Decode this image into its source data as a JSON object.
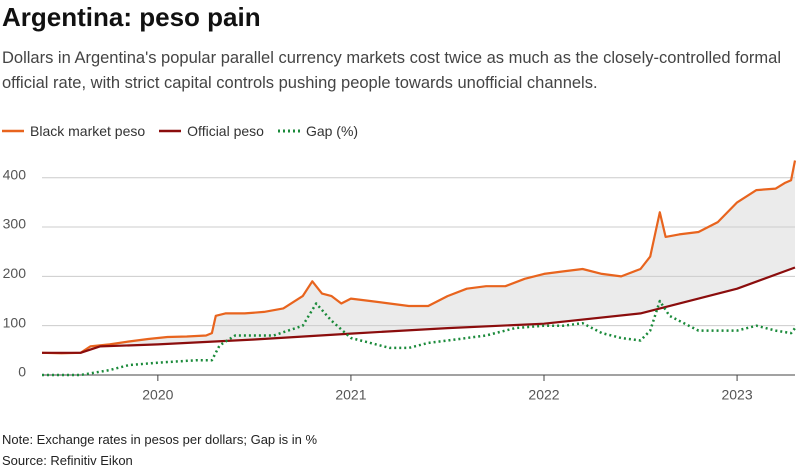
{
  "chart_data": {
    "type": "line",
    "title": "Argentina: peso pain",
    "subtitle": "Dollars in Argentina's popular parallel currency markets cost twice as much as the closely-controlled formal official rate, with strict capital controls pushing people towards unofficial channels.",
    "note": "Note: Exchange rates in pesos per dollars; Gap is in %",
    "source": "Source: Refinitiv Eikon",
    "xlim": [
      2019.4,
      2023.3
    ],
    "xticks": [
      2020,
      2021,
      2022,
      2023
    ],
    "ylim": [
      0,
      440
    ],
    "yticks": [
      0,
      100,
      200,
      300,
      400
    ],
    "grid": true,
    "shade_between": [
      0,
      1
    ],
    "series": [
      {
        "name": "Black market peso",
        "color": "#e8641e",
        "style": "solid",
        "x": [
          2019.4,
          2019.5,
          2019.6,
          2019.65,
          2019.75,
          2019.85,
          2019.95,
          2020.05,
          2020.15,
          2020.25,
          2020.28,
          2020.3,
          2020.35,
          2020.45,
          2020.55,
          2020.65,
          2020.75,
          2020.8,
          2020.85,
          2020.9,
          2020.95,
          2021.0,
          2021.1,
          2021.2,
          2021.3,
          2021.4,
          2021.5,
          2021.6,
          2021.7,
          2021.8,
          2021.9,
          2022.0,
          2022.1,
          2022.2,
          2022.3,
          2022.4,
          2022.5,
          2022.55,
          2022.6,
          2022.63,
          2022.7,
          2022.8,
          2022.9,
          2023.0,
          2023.1,
          2023.2,
          2023.25,
          2023.28,
          2023.3
        ],
        "values": [
          45,
          44,
          45,
          58,
          62,
          68,
          73,
          77,
          78,
          80,
          85,
          120,
          125,
          125,
          128,
          135,
          160,
          190,
          165,
          160,
          145,
          155,
          150,
          145,
          140,
          140,
          160,
          175,
          180,
          180,
          195,
          205,
          210,
          215,
          205,
          200,
          215,
          240,
          330,
          280,
          285,
          290,
          310,
          350,
          375,
          378,
          390,
          395,
          435
        ]
      },
      {
        "name": "Official peso",
        "color": "#8b0d0d",
        "style": "solid",
        "x": [
          2019.4,
          2019.6,
          2019.7,
          2020.0,
          2020.5,
          2021.0,
          2021.5,
          2022.0,
          2022.5,
          2023.0,
          2023.3
        ],
        "values": [
          45,
          45,
          58,
          62,
          72,
          84,
          95,
          104,
          125,
          175,
          218
        ]
      },
      {
        "name": "Gap (%)",
        "color": "#1a8a3a",
        "style": "dotted",
        "x": [
          2019.4,
          2019.6,
          2019.75,
          2019.85,
          2020.0,
          2020.2,
          2020.28,
          2020.32,
          2020.4,
          2020.6,
          2020.75,
          2020.82,
          2020.9,
          2021.0,
          2021.1,
          2021.2,
          2021.3,
          2021.4,
          2021.5,
          2021.7,
          2021.85,
          2022.0,
          2022.1,
          2022.2,
          2022.3,
          2022.4,
          2022.5,
          2022.55,
          2022.6,
          2022.65,
          2022.7,
          2022.8,
          2022.9,
          2023.0,
          2023.1,
          2023.2,
          2023.28,
          2023.3
        ],
        "values": [
          0,
          0,
          10,
          20,
          25,
          30,
          30,
          60,
          80,
          80,
          100,
          145,
          110,
          75,
          65,
          55,
          55,
          65,
          70,
          80,
          95,
          100,
          100,
          105,
          85,
          75,
          70,
          90,
          150,
          120,
          110,
          90,
          90,
          90,
          100,
          90,
          85,
          95
        ]
      }
    ]
  }
}
